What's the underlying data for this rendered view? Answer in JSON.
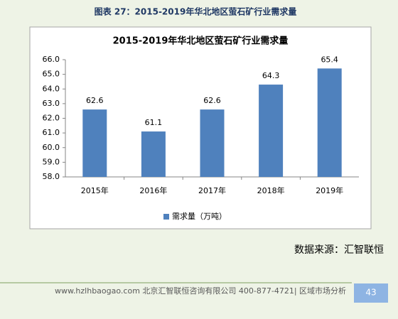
{
  "caption": "图表 27：2015-2019年华北地区萤石矿行业需求量",
  "chart_data": {
    "type": "bar",
    "title": "2015-2019年华北地区萤石矿行业需求量",
    "categories": [
      "2015年",
      "2016年",
      "2017年",
      "2018年",
      "2019年"
    ],
    "series": [
      {
        "name": "需求量（万吨）",
        "color": "#4f81bd",
        "values": [
          62.6,
          61.1,
          62.6,
          64.3,
          65.4
        ]
      }
    ],
    "ylim": [
      58,
      66
    ],
    "yticks": [
      {
        "value": 58,
        "label": "58.0"
      },
      {
        "value": 59,
        "label": "59.0"
      },
      {
        "value": 60,
        "label": "60.0"
      },
      {
        "value": 61,
        "label": "61.0"
      },
      {
        "value": 62,
        "label": "62.0"
      },
      {
        "value": 63,
        "label": "63.0"
      },
      {
        "value": 64,
        "label": "64.0"
      },
      {
        "value": 65,
        "label": "65.0"
      },
      {
        "value": 66,
        "label": "66.0"
      }
    ],
    "grid": false,
    "legend": "bottom"
  },
  "source": "数据来源：汇智联恒",
  "footer": {
    "text": "www.hzlhbaogao.com 北京汇智联恒咨询有限公司 400-877-4721| 区域市场分析",
    "page_number": "43"
  }
}
